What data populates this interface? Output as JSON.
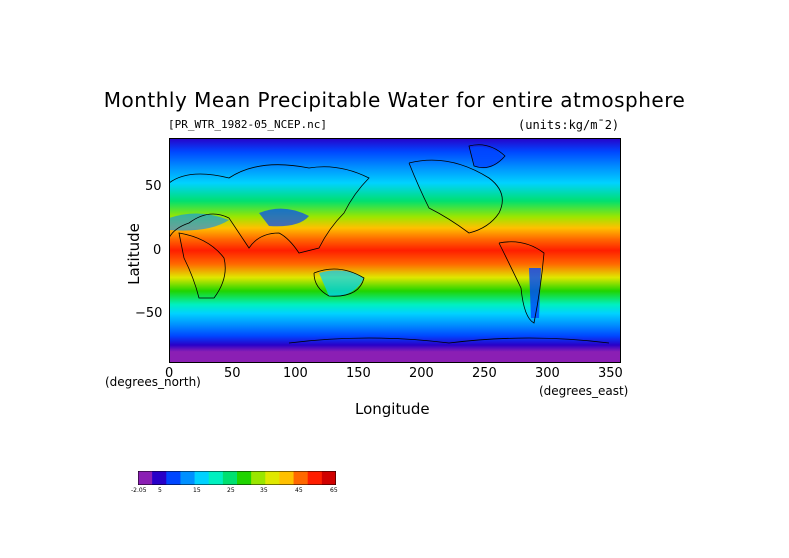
{
  "title": "Monthly Mean Precipitable Water for entire atmosphere",
  "subtitle_left": "[PR_WTR_1982-05_NCEP.nc]",
  "subtitle_right": "(units:kg/m¯2)",
  "axes": {
    "xlabel": "Longitude",
    "ylabel": "Latitude",
    "x_unit": "(degrees_east)",
    "y_unit": "(degrees_north)",
    "x_ticks": [
      "0",
      "50",
      "100",
      "150",
      "200",
      "250",
      "300",
      "350"
    ],
    "y_ticks": [
      "50",
      "0",
      "−50"
    ],
    "xlim": [
      0,
      360
    ],
    "ylim": [
      -90,
      90
    ]
  },
  "colorbar": {
    "labels": [
      "-2.05",
      "5",
      "15",
      "25",
      "35",
      "45",
      "65"
    ],
    "colors": [
      "#8b1fb4",
      "#2800c8",
      "#0046ff",
      "#0090ff",
      "#00d2ff",
      "#00f0c0",
      "#00e070",
      "#20d400",
      "#9ae600",
      "#e0e800",
      "#ffc000",
      "#ff6800",
      "#ff1e00",
      "#d00000"
    ]
  },
  "colors": {
    "polar": "#8b1fb4",
    "high_lat": "#2800c8",
    "mid_lat": "#0090ff",
    "subtropic": "#20d400",
    "tropic": "#ff6800",
    "itcz": "#ff1e00"
  }
}
